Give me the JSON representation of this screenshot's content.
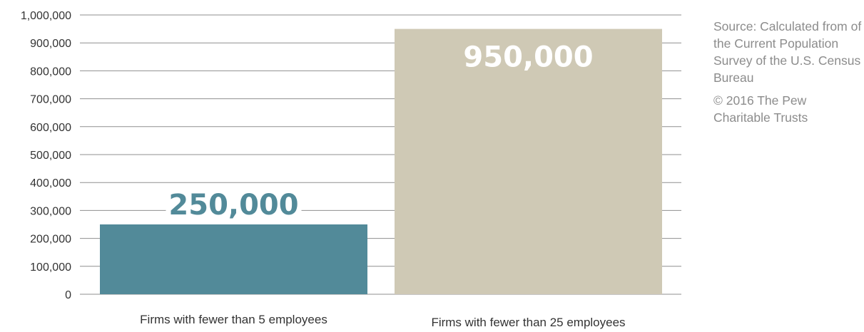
{
  "chart_data": {
    "type": "bar",
    "title": "",
    "xlabel": "",
    "ylabel": "",
    "categories": [
      "Firms with fewer than 5 employees",
      "Firms with fewer than 25 employees"
    ],
    "values": [
      250000,
      950000
    ],
    "data_labels": [
      "250,000",
      "950,000"
    ],
    "bar_colors": [
      "#528a99",
      "#cfc9b5"
    ],
    "data_label_colors": [
      "#528a99",
      "#ffffff"
    ],
    "ylim": [
      0,
      1000000
    ],
    "yticks": [
      0,
      100000,
      200000,
      300000,
      400000,
      500000,
      600000,
      700000,
      800000,
      900000,
      1000000
    ],
    "ytick_labels": [
      "0",
      "100,000",
      "200,000",
      "300,000",
      "400,000",
      "500,000",
      "600,000",
      "700,000",
      "800,000",
      "900,000",
      "1,000,000"
    ],
    "grid": true,
    "legend": "none"
  },
  "notes": {
    "source": "Source: Calculated from of the Current Population Survey of the U.S. Census Bureau",
    "copyright": "© 2016 The Pew Charitable Trusts"
  }
}
